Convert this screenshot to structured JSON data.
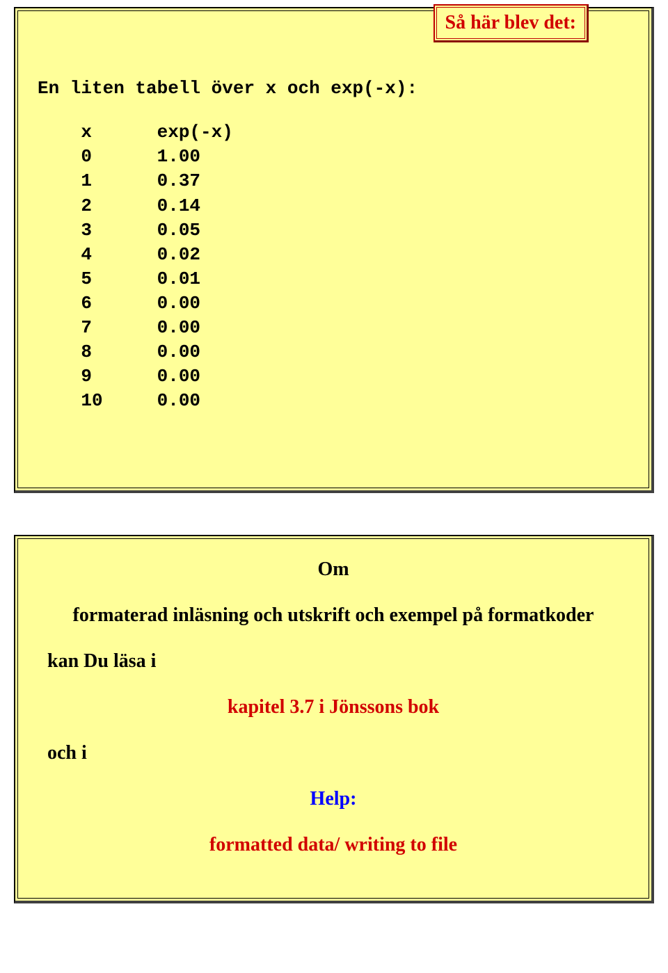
{
  "callout": {
    "text": "Så här blev det:"
  },
  "panel1": {
    "title": "En liten tabell över x och exp(-x):",
    "table": {
      "header": {
        "c1": "x",
        "c2": "exp(-x)"
      },
      "rows": [
        {
          "c1": "0",
          "c2": "1.00"
        },
        {
          "c1": "1",
          "c2": "0.37"
        },
        {
          "c1": "2",
          "c2": "0.14"
        },
        {
          "c1": "3",
          "c2": "0.05"
        },
        {
          "c1": "4",
          "c2": "0.02"
        },
        {
          "c1": "5",
          "c2": "0.01"
        },
        {
          "c1": "6",
          "c2": "0.00"
        },
        {
          "c1": "7",
          "c2": "0.00"
        },
        {
          "c1": "8",
          "c2": "0.00"
        },
        {
          "c1": "9",
          "c2": "0.00"
        },
        {
          "c1": "10",
          "c2": "0.00"
        }
      ],
      "col1_width": 7,
      "indent": 4
    }
  },
  "panel2": {
    "heading": "Om",
    "line_intro": "formaterad inläsning och utskrift och exempel på formatkoder",
    "line_read": "kan Du läsa i",
    "line_chapter": "kapitel 3.7 i Jönssons bok",
    "line_and": "och i",
    "line_help": "Help:",
    "line_formatted": "formatted data/ writing to file"
  },
  "colors": {
    "panel_bg": "#ffff99",
    "border_dark": "#000000",
    "border_shadow": "#404040",
    "red": "#d10000",
    "blue": "#0000ff",
    "text": "#000000",
    "page_bg": "#ffffff"
  },
  "fonts": {
    "mono": "Courier New, monospace, bold, ~26px",
    "serif": "Times New Roman, serif, ~28px",
    "callout": "Times New Roman, serif, bold, ~28px"
  }
}
